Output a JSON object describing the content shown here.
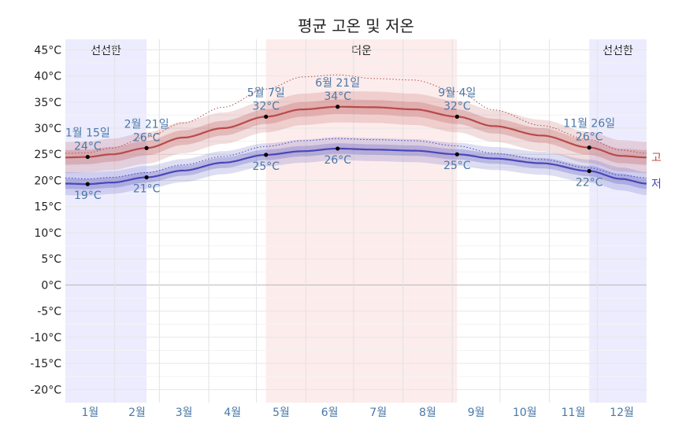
{
  "chart_data": {
    "type": "line",
    "title": "평균 고온 및 저온",
    "y_unit": "°C",
    "ylim": [
      -22.5,
      47
    ],
    "y_ticks": [
      45,
      40,
      35,
      30,
      25,
      20,
      15,
      10,
      5,
      0,
      -5,
      -10,
      -15,
      -20
    ],
    "y_tick_labels": [
      "45°C",
      "40°C",
      "35°C",
      "30°C",
      "25°C",
      "20°C",
      "15°C",
      "10°C",
      "5°C",
      "0°C",
      "-5°C",
      "-10°C",
      "-15°C",
      "-20°C"
    ],
    "x_unit": "day_of_year",
    "xlim": [
      1,
      366
    ],
    "months": [
      "1월",
      "2월",
      "3월",
      "4월",
      "5월",
      "6월",
      "7월",
      "8월",
      "9월",
      "10월",
      "11월",
      "12월"
    ],
    "seasons": [
      {
        "name": "선선한",
        "start_day": 1,
        "end_day": 52,
        "color": "#ececfe",
        "label_visible": true
      },
      {
        "name": "더운",
        "start_day": 127,
        "end_day": 247,
        "color": "#fdecec",
        "label_visible": true
      },
      {
        "name": "선선한",
        "start_day": 330,
        "end_day": 366,
        "color": "#ececfe",
        "label_visible": true
      }
    ],
    "series": [
      {
        "name": "고",
        "color": "#b84a4a",
        "points": [
          [
            1,
            24.4
          ],
          [
            15,
            24.5
          ],
          [
            30,
            25.0
          ],
          [
            52,
            26.2
          ],
          [
            75,
            28.2
          ],
          [
            100,
            30.0
          ],
          [
            127,
            32.2
          ],
          [
            150,
            33.6
          ],
          [
            172,
            34.1
          ],
          [
            195,
            34.0
          ],
          [
            220,
            33.6
          ],
          [
            247,
            32.2
          ],
          [
            270,
            30.4
          ],
          [
            300,
            28.6
          ],
          [
            330,
            26.3
          ],
          [
            350,
            24.7
          ],
          [
            366,
            24.4
          ]
        ],
        "p90": [
          [
            1,
            25.2
          ],
          [
            15,
            25.3
          ],
          [
            30,
            26.2
          ],
          [
            52,
            28.3
          ],
          [
            75,
            31.0
          ],
          [
            100,
            34.0
          ],
          [
            127,
            37.5
          ],
          [
            150,
            39.8
          ],
          [
            172,
            40.2
          ],
          [
            195,
            39.5
          ],
          [
            220,
            39.2
          ],
          [
            247,
            37.0
          ],
          [
            270,
            33.5
          ],
          [
            300,
            30.5
          ],
          [
            330,
            27.8
          ],
          [
            350,
            25.8
          ],
          [
            366,
            25.2
          ]
        ],
        "band_inner_halfwidth": 1.4,
        "band_outer_halfwidth": 3.0
      },
      {
        "name": "저",
        "color": "#4a46b8",
        "points": [
          [
            1,
            19.4
          ],
          [
            15,
            19.3
          ],
          [
            30,
            19.6
          ],
          [
            52,
            20.6
          ],
          [
            75,
            21.9
          ],
          [
            100,
            23.4
          ],
          [
            127,
            24.9
          ],
          [
            150,
            25.6
          ],
          [
            172,
            26.1
          ],
          [
            195,
            25.9
          ],
          [
            220,
            25.7
          ],
          [
            247,
            25.0
          ],
          [
            270,
            24.2
          ],
          [
            300,
            23.3
          ],
          [
            330,
            21.8
          ],
          [
            350,
            20.3
          ],
          [
            366,
            19.4
          ]
        ],
        "p90": [
          [
            1,
            20.5
          ],
          [
            15,
            20.3
          ],
          [
            30,
            20.6
          ],
          [
            52,
            21.5
          ],
          [
            75,
            23.0
          ],
          [
            100,
            24.6
          ],
          [
            127,
            26.5
          ],
          [
            150,
            27.6
          ],
          [
            172,
            28.0
          ],
          [
            195,
            27.8
          ],
          [
            220,
            27.6
          ],
          [
            247,
            26.6
          ],
          [
            270,
            25.2
          ],
          [
            300,
            24.0
          ],
          [
            330,
            22.4
          ],
          [
            350,
            21.0
          ],
          [
            366,
            20.5
          ]
        ],
        "band_inner_halfwidth": 1.0,
        "band_outer_halfwidth": 2.2
      }
    ],
    "annotations": [
      {
        "series": "고",
        "day": 15,
        "value": 24.5,
        "date_label": "1월 15일",
        "value_label": "24°C",
        "position": "above"
      },
      {
        "series": "고",
        "day": 52,
        "value": 26.2,
        "date_label": "2월 21일",
        "value_label": "26°C",
        "position": "above"
      },
      {
        "series": "고",
        "day": 127,
        "value": 32.2,
        "date_label": "5월 7일",
        "value_label": "32°C",
        "position": "above"
      },
      {
        "series": "고",
        "day": 172,
        "value": 34.1,
        "date_label": "6월 21일",
        "value_label": "34°C",
        "position": "above"
      },
      {
        "series": "고",
        "day": 247,
        "value": 32.2,
        "date_label": "9월 4일",
        "value_label": "32°C",
        "position": "above"
      },
      {
        "series": "고",
        "day": 330,
        "value": 26.3,
        "date_label": "11월 26일",
        "value_label": "26°C",
        "position": "above"
      },
      {
        "series": "저",
        "day": 15,
        "value": 19.3,
        "value_label": "19°C",
        "position": "below"
      },
      {
        "series": "저",
        "day": 52,
        "value": 20.6,
        "value_label": "21°C",
        "position": "below"
      },
      {
        "series": "저",
        "day": 127,
        "value": 24.9,
        "value_label": "25°C",
        "position": "below"
      },
      {
        "series": "저",
        "day": 172,
        "value": 26.1,
        "value_label": "26°C",
        "position": "below"
      },
      {
        "series": "저",
        "day": 247,
        "value": 25.0,
        "value_label": "25°C",
        "position": "below"
      },
      {
        "series": "저",
        "day": 330,
        "value": 21.8,
        "value_label": "22°C",
        "position": "below"
      }
    ]
  }
}
